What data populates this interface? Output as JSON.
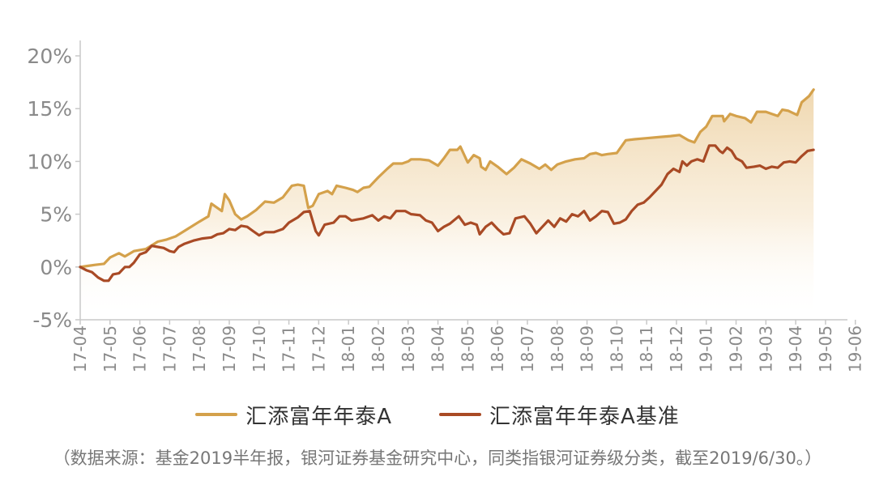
{
  "chart_data": {
    "type": "line",
    "title": "",
    "xlabel": "",
    "ylabel": "",
    "ylim": [
      -5,
      20
    ],
    "yticks": [
      "20%",
      "15%",
      "10%",
      "5%",
      "0%",
      "-5%"
    ],
    "ytick_values": [
      20,
      15,
      10,
      5,
      0,
      -5
    ],
    "xticks": [
      "17-04",
      "17-05",
      "17-06",
      "17-07",
      "17-08",
      "17-09",
      "17-10",
      "17-11",
      "17-12",
      "18-01",
      "18-02",
      "18-03",
      "18-04",
      "18-05",
      "18-06",
      "18-07",
      "18-08",
      "18-09",
      "18-10",
      "18-11",
      "18-12",
      "19-01",
      "19-02",
      "19-03",
      "19-04",
      "19-05",
      "19-06"
    ],
    "grid": false,
    "legend_position": "bottom",
    "series": [
      {
        "name": "汇添富年年泰A",
        "color": "#D4A14B",
        "fill": true,
        "points": [
          [
            0,
            0
          ],
          [
            0.25,
            0.1
          ],
          [
            0.5,
            0.2
          ],
          [
            0.8,
            0.3
          ],
          [
            1.0,
            0.9
          ],
          [
            1.3,
            1.3
          ],
          [
            1.5,
            1.0
          ],
          [
            1.8,
            1.5
          ],
          [
            2.2,
            1.7
          ],
          [
            2.6,
            2.4
          ],
          [
            2.9,
            2.6
          ],
          [
            3.2,
            2.9
          ],
          [
            3.6,
            3.6
          ],
          [
            4.0,
            4.3
          ],
          [
            4.3,
            4.8
          ],
          [
            4.4,
            6.0
          ],
          [
            4.6,
            5.6
          ],
          [
            4.75,
            5.3
          ],
          [
            4.85,
            6.9
          ],
          [
            5.0,
            6.3
          ],
          [
            5.2,
            5.0
          ],
          [
            5.4,
            4.5
          ],
          [
            5.6,
            4.8
          ],
          [
            5.9,
            5.4
          ],
          [
            6.2,
            6.2
          ],
          [
            6.5,
            6.1
          ],
          [
            6.8,
            6.6
          ],
          [
            7.1,
            7.7
          ],
          [
            7.3,
            7.8
          ],
          [
            7.5,
            7.7
          ],
          [
            7.65,
            5.6
          ],
          [
            7.8,
            5.8
          ],
          [
            8.0,
            6.9
          ],
          [
            8.3,
            7.2
          ],
          [
            8.45,
            6.9
          ],
          [
            8.6,
            7.7
          ],
          [
            8.9,
            7.5
          ],
          [
            9.15,
            7.3
          ],
          [
            9.3,
            7.1
          ],
          [
            9.5,
            7.5
          ],
          [
            9.7,
            7.6
          ],
          [
            10.0,
            8.5
          ],
          [
            10.3,
            9.3
          ],
          [
            10.5,
            9.8
          ],
          [
            10.8,
            9.8
          ],
          [
            11.0,
            10.0
          ],
          [
            11.1,
            10.2
          ],
          [
            11.4,
            10.2
          ],
          [
            11.7,
            10.1
          ],
          [
            12.0,
            9.6
          ],
          [
            12.2,
            10.3
          ],
          [
            12.4,
            11.1
          ],
          [
            12.65,
            11.1
          ],
          [
            12.75,
            11.4
          ],
          [
            12.95,
            10.2
          ],
          [
            13.0,
            9.9
          ],
          [
            13.2,
            10.6
          ],
          [
            13.4,
            10.3
          ],
          [
            13.45,
            9.5
          ],
          [
            13.6,
            9.2
          ],
          [
            13.75,
            10.0
          ],
          [
            14.0,
            9.5
          ],
          [
            14.3,
            8.8
          ],
          [
            14.55,
            9.4
          ],
          [
            14.8,
            10.2
          ],
          [
            15.1,
            9.8
          ],
          [
            15.4,
            9.3
          ],
          [
            15.6,
            9.7
          ],
          [
            15.8,
            9.2
          ],
          [
            16.0,
            9.7
          ],
          [
            16.3,
            10.0
          ],
          [
            16.6,
            10.2
          ],
          [
            16.9,
            10.3
          ],
          [
            17.1,
            10.7
          ],
          [
            17.3,
            10.8
          ],
          [
            17.5,
            10.6
          ],
          [
            17.7,
            10.7
          ],
          [
            18.0,
            10.8
          ],
          [
            18.3,
            12.0
          ],
          [
            18.6,
            12.1
          ],
          [
            19.0,
            12.2
          ],
          [
            19.4,
            12.3
          ],
          [
            19.8,
            12.4
          ],
          [
            20.1,
            12.5
          ],
          [
            20.4,
            12.0
          ],
          [
            20.6,
            11.8
          ],
          [
            20.8,
            12.8
          ],
          [
            21.0,
            13.3
          ],
          [
            21.2,
            14.3
          ],
          [
            21.4,
            14.3
          ],
          [
            21.55,
            14.3
          ],
          [
            21.6,
            13.8
          ],
          [
            21.8,
            14.5
          ],
          [
            22.0,
            14.3
          ],
          [
            22.3,
            14.1
          ],
          [
            22.5,
            13.7
          ],
          [
            22.7,
            14.7
          ],
          [
            23.0,
            14.7
          ],
          [
            23.2,
            14.5
          ],
          [
            23.4,
            14.3
          ],
          [
            23.55,
            14.9
          ],
          [
            23.75,
            14.8
          ],
          [
            23.9,
            14.6
          ],
          [
            24.05,
            14.4
          ],
          [
            24.2,
            15.6
          ],
          [
            24.45,
            16.2
          ],
          [
            24.6,
            16.8
          ]
        ]
      },
      {
        "name": "汇添富年年泰A基准",
        "color": "#A94A25",
        "fill": false,
        "points": [
          [
            0,
            0
          ],
          [
            0.2,
            -0.3
          ],
          [
            0.4,
            -0.5
          ],
          [
            0.6,
            -1.0
          ],
          [
            0.8,
            -1.3
          ],
          [
            0.95,
            -1.3
          ],
          [
            1.1,
            -0.7
          ],
          [
            1.3,
            -0.6
          ],
          [
            1.5,
            0.0
          ],
          [
            1.65,
            0.0
          ],
          [
            1.8,
            0.4
          ],
          [
            2.0,
            1.2
          ],
          [
            2.2,
            1.4
          ],
          [
            2.4,
            2.0
          ],
          [
            2.6,
            1.9
          ],
          [
            2.8,
            1.8
          ],
          [
            3.0,
            1.5
          ],
          [
            3.15,
            1.4
          ],
          [
            3.3,
            1.9
          ],
          [
            3.5,
            2.2
          ],
          [
            3.8,
            2.5
          ],
          [
            4.1,
            2.7
          ],
          [
            4.4,
            2.8
          ],
          [
            4.6,
            3.1
          ],
          [
            4.8,
            3.2
          ],
          [
            5.0,
            3.6
          ],
          [
            5.2,
            3.5
          ],
          [
            5.4,
            3.9
          ],
          [
            5.6,
            3.8
          ],
          [
            5.8,
            3.4
          ],
          [
            6.0,
            3.0
          ],
          [
            6.2,
            3.3
          ],
          [
            6.5,
            3.3
          ],
          [
            6.8,
            3.6
          ],
          [
            7.0,
            4.2
          ],
          [
            7.3,
            4.7
          ],
          [
            7.5,
            5.2
          ],
          [
            7.7,
            5.3
          ],
          [
            7.9,
            3.4
          ],
          [
            8.0,
            3.0
          ],
          [
            8.2,
            4.0
          ],
          [
            8.5,
            4.2
          ],
          [
            8.7,
            4.8
          ],
          [
            8.9,
            4.8
          ],
          [
            9.1,
            4.4
          ],
          [
            9.3,
            4.5
          ],
          [
            9.5,
            4.6
          ],
          [
            9.8,
            4.9
          ],
          [
            10.0,
            4.4
          ],
          [
            10.2,
            4.8
          ],
          [
            10.4,
            4.6
          ],
          [
            10.6,
            5.3
          ],
          [
            10.9,
            5.3
          ],
          [
            11.1,
            5.0
          ],
          [
            11.4,
            4.9
          ],
          [
            11.6,
            4.4
          ],
          [
            11.8,
            4.2
          ],
          [
            12.0,
            3.4
          ],
          [
            12.2,
            3.8
          ],
          [
            12.4,
            4.1
          ],
          [
            12.7,
            4.8
          ],
          [
            12.9,
            4.0
          ],
          [
            13.1,
            4.2
          ],
          [
            13.3,
            4.0
          ],
          [
            13.4,
            3.1
          ],
          [
            13.6,
            3.8
          ],
          [
            13.8,
            4.2
          ],
          [
            14.0,
            3.6
          ],
          [
            14.2,
            3.1
          ],
          [
            14.4,
            3.2
          ],
          [
            14.6,
            4.6
          ],
          [
            14.9,
            4.8
          ],
          [
            15.1,
            4.1
          ],
          [
            15.3,
            3.2
          ],
          [
            15.5,
            3.8
          ],
          [
            15.7,
            4.4
          ],
          [
            15.9,
            3.8
          ],
          [
            16.1,
            4.6
          ],
          [
            16.3,
            4.3
          ],
          [
            16.5,
            5.0
          ],
          [
            16.7,
            4.8
          ],
          [
            16.9,
            5.3
          ],
          [
            17.1,
            4.4
          ],
          [
            17.3,
            4.8
          ],
          [
            17.5,
            5.3
          ],
          [
            17.7,
            5.2
          ],
          [
            17.9,
            4.1
          ],
          [
            18.1,
            4.2
          ],
          [
            18.3,
            4.5
          ],
          [
            18.5,
            5.3
          ],
          [
            18.7,
            5.9
          ],
          [
            18.9,
            6.1
          ],
          [
            19.1,
            6.6
          ],
          [
            19.3,
            7.2
          ],
          [
            19.5,
            7.8
          ],
          [
            19.7,
            8.8
          ],
          [
            19.9,
            9.3
          ],
          [
            20.1,
            9.0
          ],
          [
            20.2,
            10.0
          ],
          [
            20.35,
            9.6
          ],
          [
            20.5,
            10.0
          ],
          [
            20.7,
            10.2
          ],
          [
            20.9,
            10.0
          ],
          [
            21.1,
            11.5
          ],
          [
            21.3,
            11.5
          ],
          [
            21.45,
            11.0
          ],
          [
            21.55,
            10.8
          ],
          [
            21.7,
            11.3
          ],
          [
            21.85,
            11.0
          ],
          [
            22.0,
            10.3
          ],
          [
            22.2,
            10.0
          ],
          [
            22.35,
            9.4
          ],
          [
            22.6,
            9.5
          ],
          [
            22.8,
            9.6
          ],
          [
            23.0,
            9.3
          ],
          [
            23.2,
            9.5
          ],
          [
            23.4,
            9.4
          ],
          [
            23.6,
            9.9
          ],
          [
            23.8,
            10.0
          ],
          [
            24.0,
            9.9
          ],
          [
            24.2,
            10.5
          ],
          [
            24.4,
            11.0
          ],
          [
            24.6,
            11.1
          ]
        ]
      }
    ],
    "source_note": "（数据来源：基金2019半年报，银河证券基金研究中心，同类指银河证券级分类，截至2019/6/30。）"
  }
}
